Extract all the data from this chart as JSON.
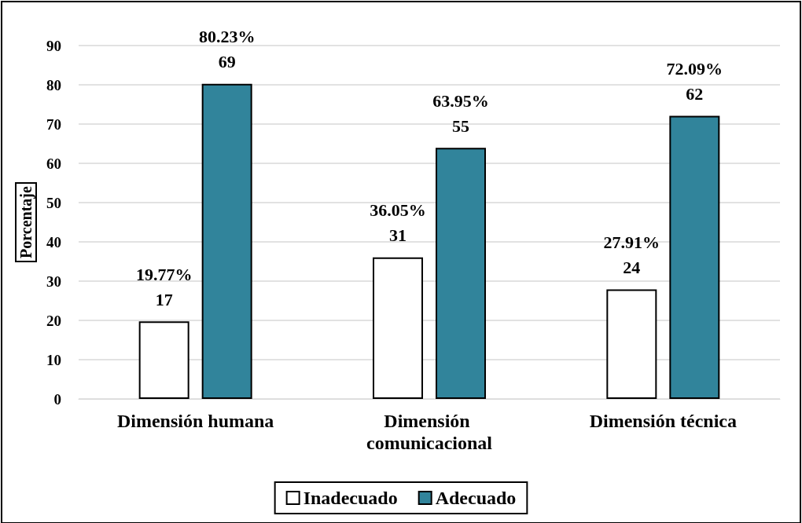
{
  "chart_data": {
    "type": "bar",
    "ylabel": "Porcentaje",
    "categories": [
      "Dimensión humana",
      "Dimensión comunicacional",
      "Dimensión técnica"
    ],
    "series": [
      {
        "name": "Inadecuado",
        "color": "#ffffff",
        "values": [
          19.77,
          36.05,
          27.91
        ],
        "value_labels": [
          "19.77%\n17",
          "36.05%\n31",
          "27.91%\n24"
        ]
      },
      {
        "name": "Adecuado",
        "color": "#31849b",
        "values": [
          80.23,
          63.95,
          72.09
        ],
        "value_labels": [
          "80.23%\n69",
          "63.95%\n55",
          "72.09%\n62"
        ]
      }
    ],
    "ylim": [
      0,
      90
    ],
    "yticks": [
      0,
      10,
      20,
      30,
      40,
      50,
      60,
      70,
      80,
      90
    ],
    "grid": "y",
    "legend": "bottom"
  }
}
